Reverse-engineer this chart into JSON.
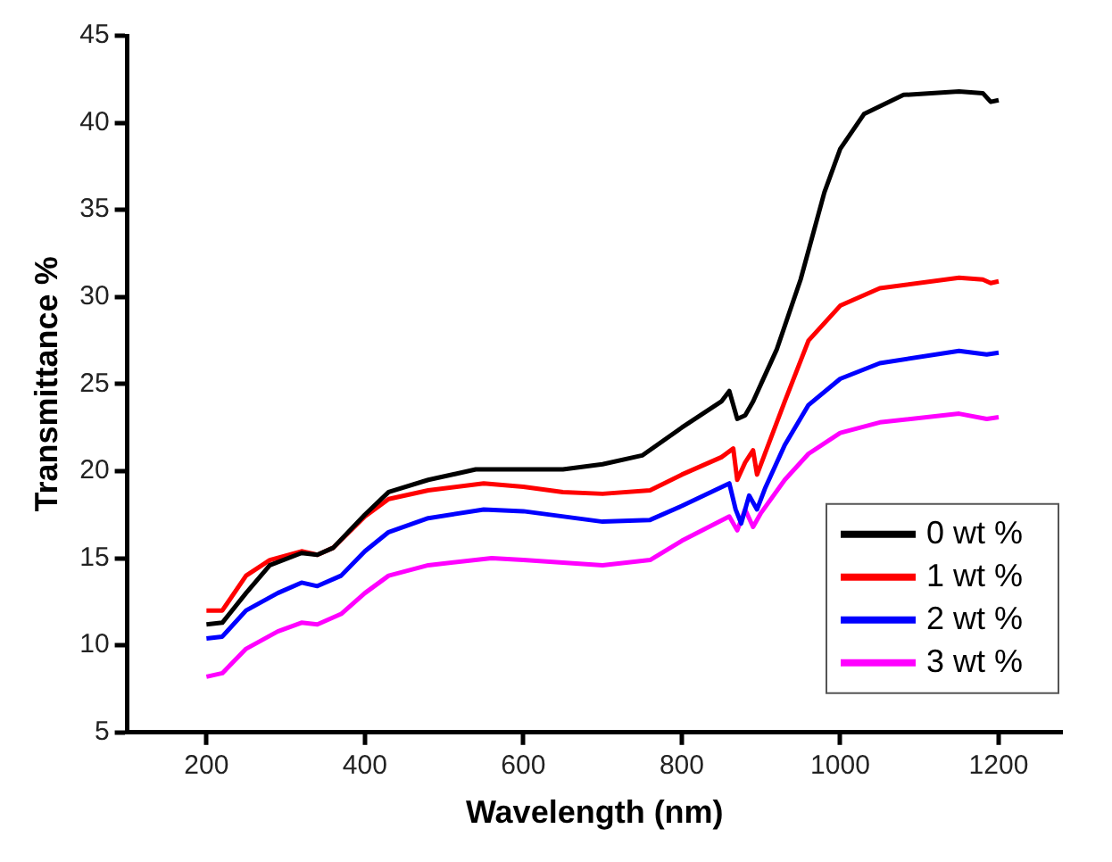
{
  "chart_data": {
    "type": "line",
    "xlabel": "Wavelength (nm)",
    "ylabel": "Transmittance %",
    "xlim": [
      100,
      1280
    ],
    "xticks": [
      200,
      400,
      600,
      800,
      1000,
      1200
    ],
    "ylim": [
      5,
      45
    ],
    "yticks": [
      5,
      10,
      15,
      20,
      25,
      30,
      35,
      40,
      45
    ],
    "grid": false,
    "legend": "bottom right",
    "marker": "none",
    "line_style": "solid",
    "series": [
      {
        "name": "0 wt %",
        "color": "#000000",
        "x": [
          200,
          220,
          250,
          280,
          320,
          340,
          360,
          400,
          430,
          480,
          540,
          600,
          650,
          700,
          750,
          800,
          850,
          860,
          870,
          880,
          890,
          900,
          920,
          950,
          980,
          1000,
          1030,
          1080,
          1150,
          1180,
          1190,
          1200
        ],
        "values": [
          11.2,
          11.3,
          13,
          14.6,
          15.3,
          15.2,
          15.6,
          17.5,
          18.8,
          19.5,
          20.1,
          20.1,
          20.1,
          20.4,
          20.9,
          22.5,
          24,
          24.6,
          23,
          23.2,
          24,
          25,
          27,
          31,
          36,
          38.5,
          40.5,
          41.6,
          41.8,
          41.7,
          41.2,
          41.3
        ]
      },
      {
        "name": "1 wt %",
        "color": "#ff0000",
        "x": [
          200,
          220,
          250,
          280,
          320,
          340,
          360,
          400,
          430,
          480,
          550,
          600,
          650,
          700,
          760,
          800,
          850,
          865,
          870,
          880,
          890,
          895,
          905,
          930,
          960,
          1000,
          1050,
          1150,
          1180,
          1190,
          1200
        ],
        "values": [
          12,
          12,
          14,
          14.9,
          15.4,
          15.2,
          15.6,
          17.4,
          18.4,
          18.9,
          19.3,
          19.1,
          18.8,
          18.7,
          18.9,
          19.8,
          20.8,
          21.3,
          19.5,
          20.5,
          21.2,
          19.8,
          21,
          24,
          27.5,
          29.5,
          30.5,
          31.1,
          31,
          30.8,
          30.9
        ]
      },
      {
        "name": "2 wt %",
        "color": "#0000ff",
        "x": [
          200,
          220,
          250,
          290,
          320,
          340,
          370,
          400,
          430,
          480,
          550,
          600,
          700,
          760,
          800,
          860,
          868,
          875,
          885,
          895,
          905,
          930,
          960,
          1000,
          1050,
          1150,
          1185,
          1200
        ],
        "values": [
          10.4,
          10.5,
          12,
          13,
          13.6,
          13.4,
          14,
          15.4,
          16.5,
          17.3,
          17.8,
          17.7,
          17.1,
          17.2,
          18,
          19.3,
          17.8,
          17,
          18.6,
          17.8,
          19,
          21.5,
          23.8,
          25.3,
          26.2,
          26.9,
          26.7,
          26.8
        ]
      },
      {
        "name": "3 wt %",
        "color": "#ff00ff",
        "x": [
          200,
          220,
          250,
          290,
          320,
          340,
          370,
          400,
          430,
          480,
          560,
          600,
          700,
          760,
          800,
          860,
          870,
          880,
          890,
          900,
          930,
          960,
          1000,
          1050,
          1150,
          1185,
          1200
        ],
        "values": [
          8.2,
          8.4,
          9.8,
          10.8,
          11.3,
          11.2,
          11.8,
          13,
          14,
          14.6,
          15,
          14.9,
          14.6,
          14.9,
          16,
          17.4,
          16.6,
          17.8,
          16.8,
          17.6,
          19.5,
          21,
          22.2,
          22.8,
          23.3,
          23,
          23.1
        ]
      }
    ]
  }
}
